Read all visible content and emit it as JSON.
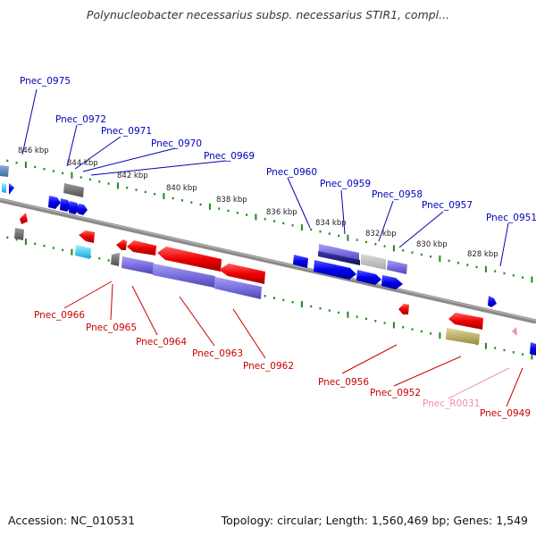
{
  "title": "Polynucleobacter necessarius subsp. necessarius STIR1, compl...",
  "footer": {
    "accession": "Accession: NC_010531",
    "summary": "Topology: circular; Length: 1,560,469 bp; Genes: 1,549"
  },
  "colors": {
    "forward_label": "#0000b8",
    "reverse_label": "#cc0000",
    "rna_label": "#f090a8",
    "tick": "#1a8a1a",
    "backbone": "#8a8a8a"
  },
  "kbp_ticks": [
    "846 kbp",
    "844 kbp",
    "842 kbp",
    "840 kbp",
    "838 kbp",
    "836 kbp",
    "834 kbp",
    "832 kbp",
    "830 kbp",
    "828 kbp"
  ],
  "labels_top": [
    "Pnec_0975",
    "Pnec_0972",
    "Pnec_0971",
    "Pnec_0970",
    "Pnec_0969",
    "Pnec_0960",
    "Pnec_0959",
    "Pnec_0958",
    "Pnec_0957",
    "Pnec_0951"
  ],
  "labels_bottom": [
    "Pnec_0966",
    "Pnec_0965",
    "Pnec_0964",
    "Pnec_0963",
    "Pnec_0962",
    "Pnec_0956",
    "Pnec_0952",
    "Pnec_R0031",
    "Pnec_0949"
  ]
}
